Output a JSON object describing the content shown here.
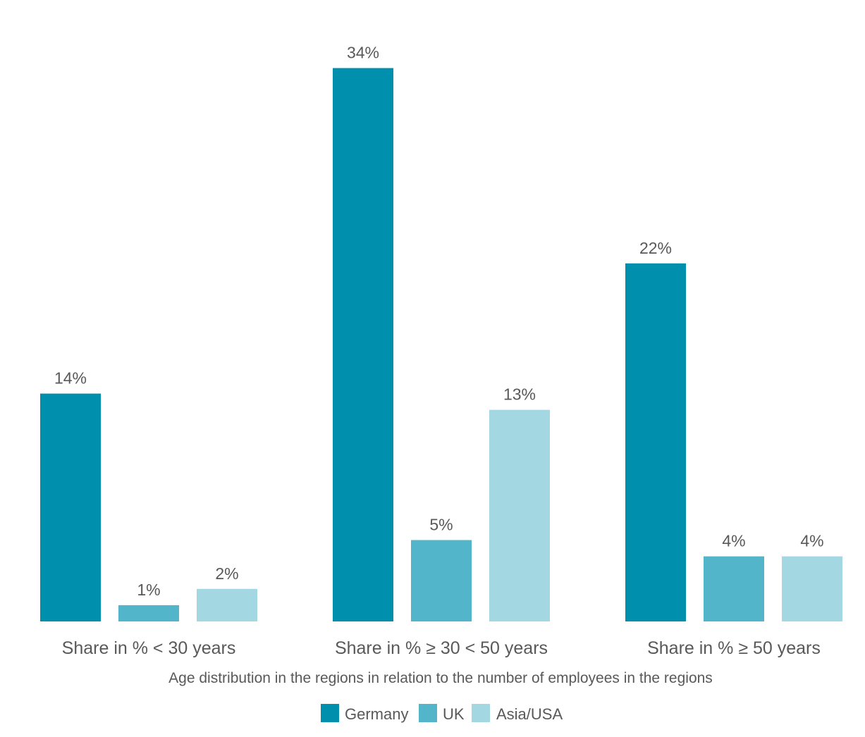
{
  "chart_data": {
    "type": "bar",
    "categories": [
      "Share in % < 30 years",
      "Share in % ≥ 30 < 50 years",
      "Share in % ≥ 50 years"
    ],
    "series": [
      {
        "name": "Germany",
        "color": "#0090ad",
        "values": [
          14,
          34,
          22
        ],
        "labels": [
          "14%",
          "34%",
          "22%"
        ]
      },
      {
        "name": "UK",
        "color": "#52b5c9",
        "values": [
          1,
          5,
          4
        ],
        "labels": [
          "1%",
          "5%",
          "4%"
        ]
      },
      {
        "name": "Asia/USA",
        "color": "#a3d7e1",
        "values": [
          2,
          13,
          4
        ],
        "labels": [
          "2%",
          "13%",
          "4%"
        ]
      }
    ],
    "title": "",
    "xlabel": "Age distribution in the regions in relation to the number of employees in the regions",
    "ylabel": "",
    "ylim": [
      0,
      34
    ],
    "grid": false,
    "legend_position": "bottom"
  }
}
